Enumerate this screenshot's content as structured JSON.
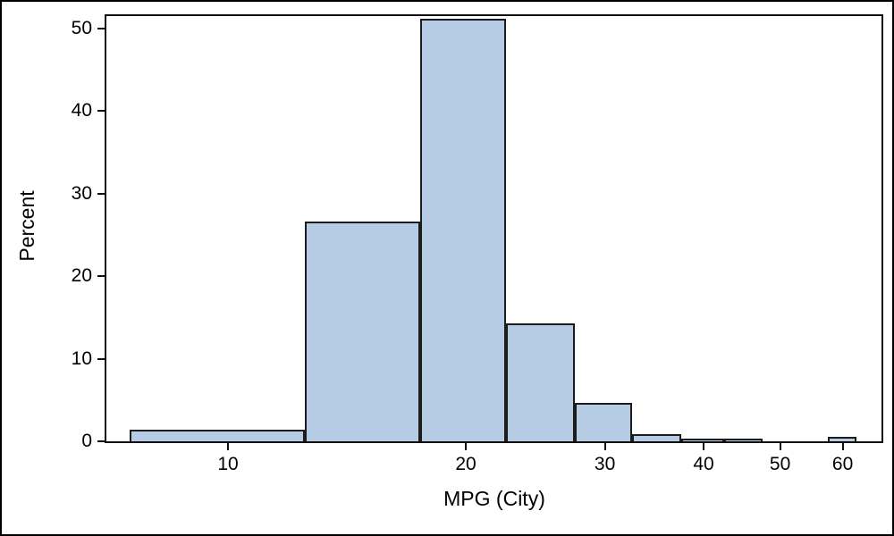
{
  "chart_data": {
    "type": "bar",
    "subtype": "histogram",
    "title": "",
    "xlabel": "MPG (City)",
    "ylabel": "Percent",
    "x_scale": "log",
    "x_tick_values": [
      10,
      20,
      30,
      40,
      50,
      60
    ],
    "x_tick_labels": [
      "10",
      "20",
      "30",
      "40",
      "50",
      "60"
    ],
    "y_tick_values": [
      0,
      10,
      20,
      30,
      40,
      50
    ],
    "y_tick_labels": [
      "0",
      "10",
      "20",
      "30",
      "40",
      "50"
    ],
    "ylim": [
      0,
      51.5
    ],
    "bin_width": 5,
    "bin_midpoints": [
      10,
      15,
      20,
      25,
      30,
      35,
      40,
      45,
      50,
      55,
      60
    ],
    "bin_edges": [
      7.5,
      12.5,
      17.5,
      22.5,
      27.5,
      32.5,
      37.5,
      42.5,
      47.5,
      52.5,
      57.5,
      62.5
    ],
    "values_percent": [
      1.4,
      26.6,
      51.2,
      14.3,
      4.7,
      0.9,
      0.2,
      0.2,
      0,
      0,
      0.5
    ],
    "legend": "none",
    "grid": "off",
    "frame": "on",
    "colors": {
      "bar_fill": "#B6CCE4",
      "bar_border": "#1C1C1C",
      "axis": "#0F0F0F",
      "text": "#000000",
      "background": "#FFFFFF"
    }
  }
}
